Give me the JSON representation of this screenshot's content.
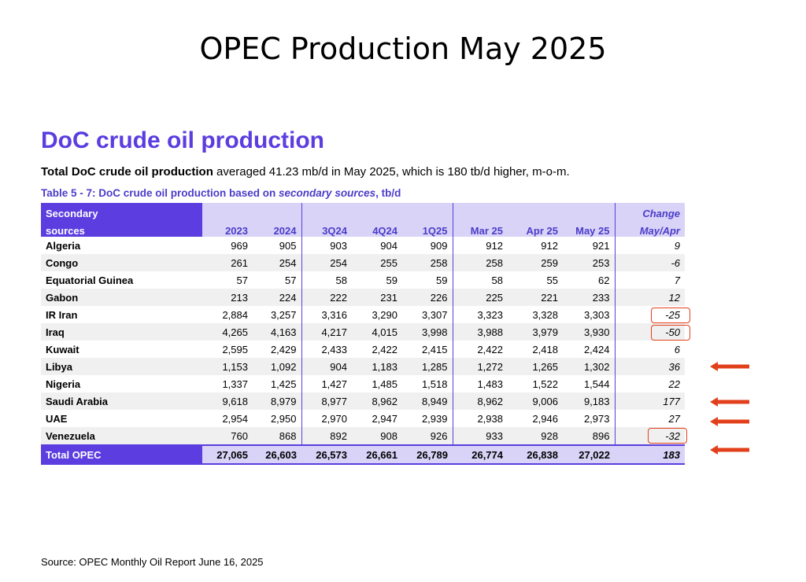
{
  "slide_title": "OPEC Production May 2025",
  "section_heading": "DoC crude oil production",
  "summary": {
    "bold_part": "Total DoC crude oil production",
    "rest": " averaged 41.23 mb/d in May 2025, which is 180 tb/d higher, m-o-m."
  },
  "caption": {
    "prefix": "Table 5 - 7: DoC crude oil production based on ",
    "italic": "secondary sources",
    "suffix": ", tb/d"
  },
  "table": {
    "header_label_line1": "Secondary",
    "header_label_line2": "sources",
    "change_line1": "Change",
    "change_line2": "May/Apr",
    "columns": [
      "2023",
      "2024",
      "3Q24",
      "4Q24",
      "1Q25",
      "Mar 25",
      "Apr 25",
      "May 25"
    ],
    "rows": [
      {
        "country": "Algeria",
        "values": [
          "969",
          "905",
          "903",
          "904",
          "909",
          "912",
          "912",
          "921"
        ],
        "change": "9"
      },
      {
        "country": "Congo",
        "values": [
          "261",
          "254",
          "254",
          "255",
          "258",
          "258",
          "259",
          "253"
        ],
        "change": "-6"
      },
      {
        "country": "Equatorial Guinea",
        "values": [
          "57",
          "57",
          "58",
          "59",
          "59",
          "58",
          "55",
          "62"
        ],
        "change": "7"
      },
      {
        "country": "Gabon",
        "values": [
          "213",
          "224",
          "222",
          "231",
          "226",
          "225",
          "221",
          "233"
        ],
        "change": "12"
      },
      {
        "country": "IR Iran",
        "values": [
          "2,884",
          "3,257",
          "3,316",
          "3,290",
          "3,307",
          "3,323",
          "3,328",
          "3,303"
        ],
        "change": "-25"
      },
      {
        "country": "Iraq",
        "values": [
          "4,265",
          "4,163",
          "4,217",
          "4,015",
          "3,998",
          "3,988",
          "3,979",
          "3,930"
        ],
        "change": "-50"
      },
      {
        "country": "Kuwait",
        "values": [
          "2,595",
          "2,429",
          "2,433",
          "2,422",
          "2,415",
          "2,422",
          "2,418",
          "2,424"
        ],
        "change": "6"
      },
      {
        "country": "Libya",
        "values": [
          "1,153",
          "1,092",
          "904",
          "1,183",
          "1,285",
          "1,272",
          "1,265",
          "1,302"
        ],
        "change": "36"
      },
      {
        "country": "Nigeria",
        "values": [
          "1,337",
          "1,425",
          "1,427",
          "1,485",
          "1,518",
          "1,483",
          "1,522",
          "1,544"
        ],
        "change": "22"
      },
      {
        "country": "Saudi Arabia",
        "values": [
          "9,618",
          "8,979",
          "8,977",
          "8,962",
          "8,949",
          "8,962",
          "9,006",
          "9,183"
        ],
        "change": "177"
      },
      {
        "country": "UAE",
        "values": [
          "2,954",
          "2,950",
          "2,970",
          "2,947",
          "2,939",
          "2,938",
          "2,946",
          "2,973"
        ],
        "change": "27"
      },
      {
        "country": "Venezuela",
        "values": [
          "760",
          "868",
          "892",
          "908",
          "926",
          "933",
          "928",
          "896"
        ],
        "change": "-32"
      }
    ],
    "total": {
      "country": "Total  OPEC",
      "values": [
        "27,065",
        "26,603",
        "26,573",
        "26,661",
        "26,789",
        "26,774",
        "26,838",
        "27,022"
      ],
      "change": "183"
    }
  },
  "highlight_color": "#e2401c",
  "accent_color": "#5b3de0",
  "source": "Source: OPEC Monthly Oil Report June 16, 2025"
}
